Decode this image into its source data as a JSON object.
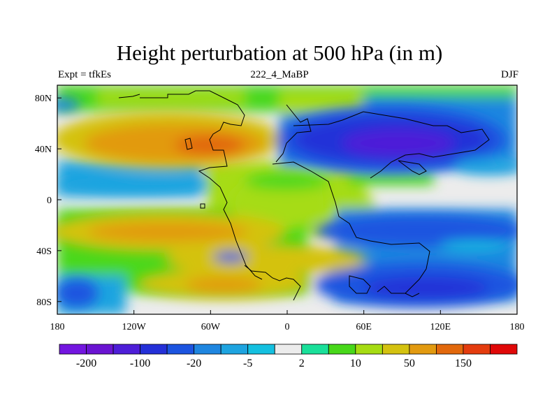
{
  "title": "Height perturbation at 500 hPa (in m)",
  "subtitle_left": "Expt = tfkEs",
  "subtitle_center": "222_4_MaBP",
  "subtitle_right": "DJF",
  "lon_ticks": [
    {
      "value": -180,
      "label": "180"
    },
    {
      "value": -120,
      "label": "120W"
    },
    {
      "value": -60,
      "label": "60W"
    },
    {
      "value": 0,
      "label": "0"
    },
    {
      "value": 60,
      "label": "60E"
    },
    {
      "value": 120,
      "label": "120E"
    },
    {
      "value": 180,
      "label": "180"
    }
  ],
  "lat_ticks": [
    {
      "value": 80,
      "label": "80N"
    },
    {
      "value": 40,
      "label": "40N"
    },
    {
      "value": 0,
      "label": "0"
    },
    {
      "value": -40,
      "label": "40S"
    },
    {
      "value": -80,
      "label": "80S"
    }
  ],
  "colorbar": {
    "colors": [
      "#7316e0",
      "#6a14d2",
      "#4e1ed8",
      "#2430d8",
      "#1c54e0",
      "#1f86e0",
      "#1ea4e0",
      "#14c0e0",
      "#ececec",
      "#1ae09a",
      "#48d81a",
      "#a6dc12",
      "#d4c210",
      "#e29a10",
      "#e2680c",
      "#e43c0e",
      "#e00808"
    ],
    "labels": [
      {
        "text": "-200",
        "boundary": 1
      },
      {
        "text": "-100",
        "boundary": 3
      },
      {
        "text": "-20",
        "boundary": 5
      },
      {
        "text": "-5",
        "boundary": 7
      },
      {
        "text": "2",
        "boundary": 9
      },
      {
        "text": "10",
        "boundary": 11
      },
      {
        "text": "50",
        "boundary": 13
      },
      {
        "text": "150",
        "boundary": 15
      }
    ]
  }
}
